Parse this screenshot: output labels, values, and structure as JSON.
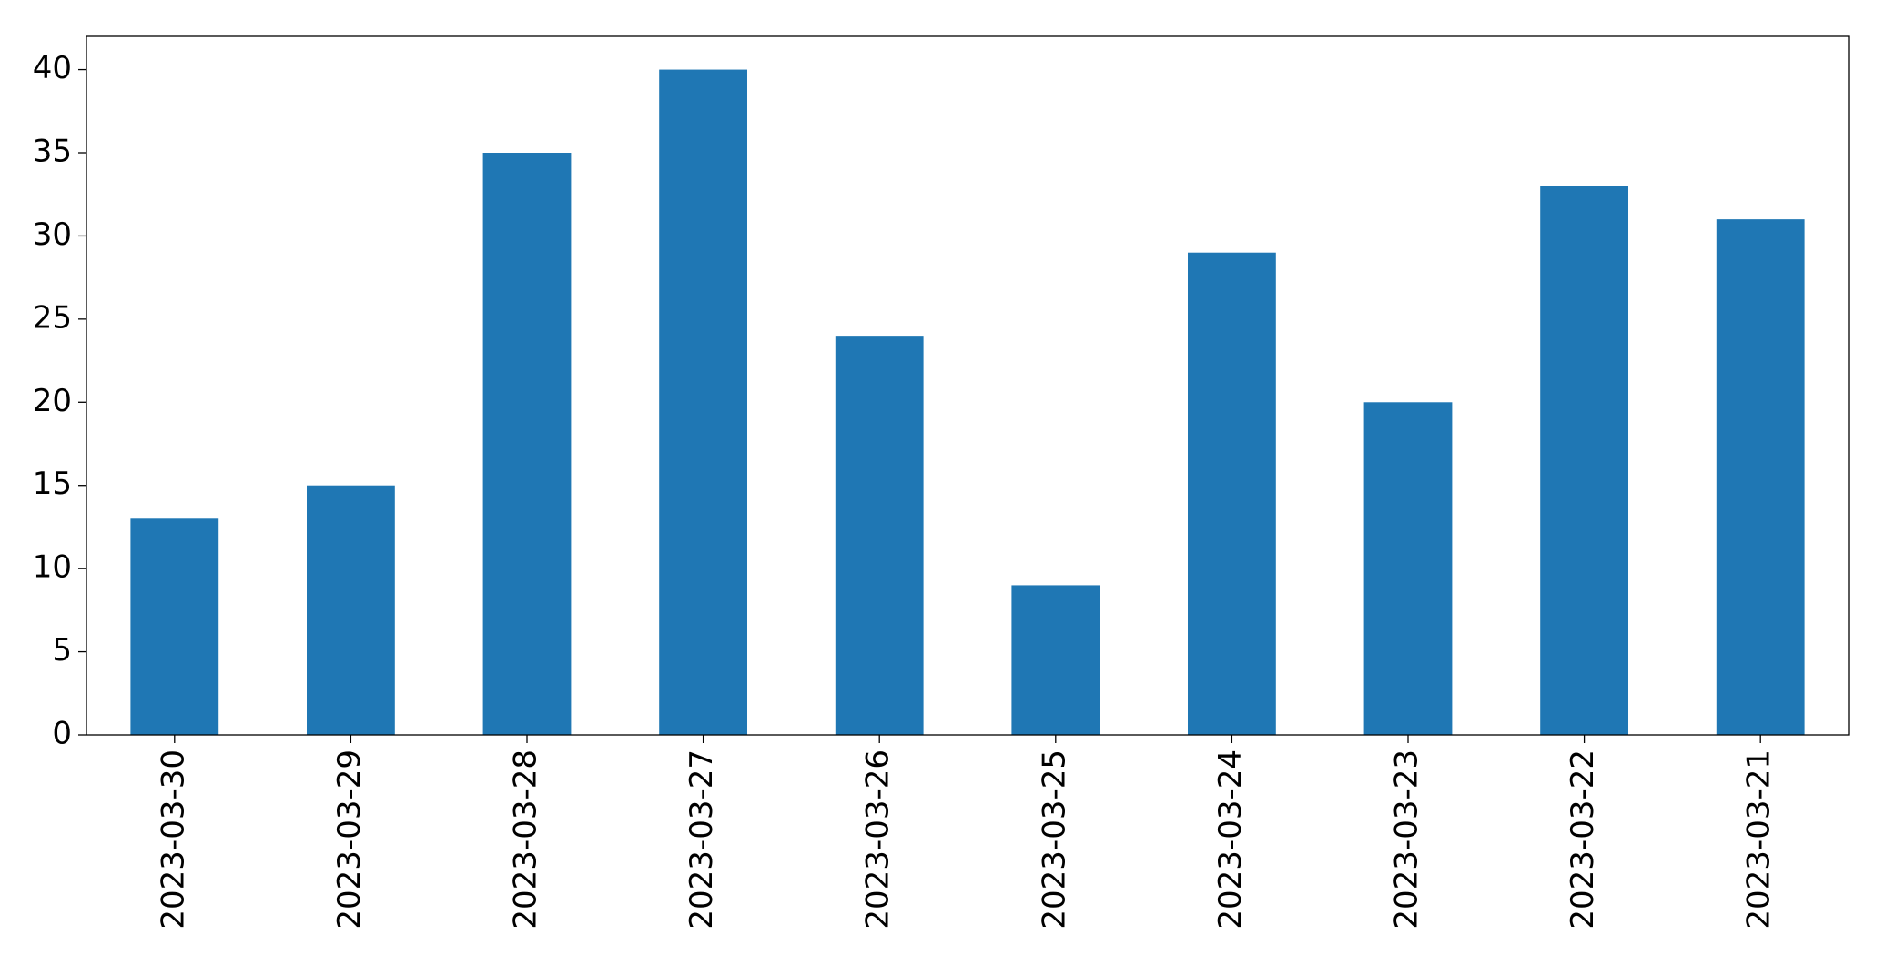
{
  "chart_data": {
    "type": "bar",
    "categories": [
      "2023-03-30",
      "2023-03-29",
      "2023-03-28",
      "2023-03-27",
      "2023-03-26",
      "2023-03-25",
      "2023-03-24",
      "2023-03-23",
      "2023-03-22",
      "2023-03-21"
    ],
    "values": [
      13,
      15,
      35,
      40,
      24,
      9,
      29,
      20,
      33,
      31
    ],
    "color": "#1f77b4",
    "ylim": [
      0,
      42
    ],
    "yticks": [
      0,
      5,
      10,
      15,
      20,
      25,
      30,
      35,
      40
    ],
    "grid": false
  }
}
